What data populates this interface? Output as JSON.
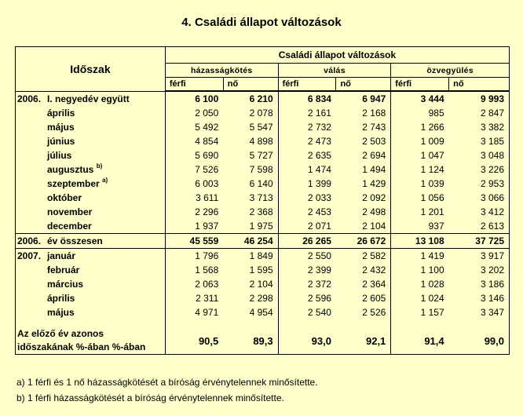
{
  "title": "4. Családi állapot változások",
  "header": {
    "period": "Időszak",
    "group": "Családi állapot változások",
    "subgroups": [
      "házasságkötés",
      "válás",
      "özvegyülés"
    ],
    "sex": [
      "férfi",
      "nő",
      "férfi",
      "nő",
      "férfi",
      "nő"
    ]
  },
  "rows": [
    {
      "year": "2006.",
      "label": "I. negyedév együtt",
      "note": "",
      "bold": true,
      "values": [
        "6 100",
        "6 210",
        "6 834",
        "6 947",
        "3 444",
        "9 993"
      ]
    },
    {
      "year": "",
      "label": "április",
      "note": "",
      "bold": false,
      "values": [
        "2 050",
        "2 078",
        "2 161",
        "2 168",
        "985",
        "2 847"
      ]
    },
    {
      "year": "",
      "label": "május",
      "note": "",
      "bold": false,
      "values": [
        "5 492",
        "5 547",
        "2 732",
        "2 743",
        "1 266",
        "3 382"
      ]
    },
    {
      "year": "",
      "label": "június",
      "note": "",
      "bold": false,
      "values": [
        "4 854",
        "4 898",
        "2 473",
        "2 503",
        "1 009",
        "3 185"
      ]
    },
    {
      "year": "",
      "label": "július",
      "note": "",
      "bold": false,
      "values": [
        "5 690",
        "5 727",
        "2 635",
        "2 694",
        "1 047",
        "3 048"
      ]
    },
    {
      "year": "",
      "label": "augusztus",
      "note": "b)",
      "bold": false,
      "values": [
        "7 526",
        "7 598",
        "1 474",
        "1 494",
        "1 124",
        "3 226"
      ]
    },
    {
      "year": "",
      "label": "szeptember",
      "note": "a)",
      "bold": false,
      "values": [
        "6 003",
        "6 140",
        "1 399",
        "1 429",
        "1 039",
        "2 953"
      ]
    },
    {
      "year": "",
      "label": "október",
      "note": "",
      "bold": false,
      "values": [
        "3 611",
        "3 713",
        "2 033",
        "2 092",
        "1 056",
        "3 066"
      ]
    },
    {
      "year": "",
      "label": "november",
      "note": "",
      "bold": false,
      "values": [
        "2 296",
        "2 368",
        "2 453",
        "2 498",
        "1 201",
        "3 412"
      ]
    },
    {
      "year": "",
      "label": "december",
      "note": "",
      "bold": false,
      "values": [
        "1 937",
        "1 975",
        "2 071",
        "2 104",
        "937",
        "2 613"
      ]
    },
    {
      "year": "2006.",
      "label": "év összesen",
      "note": "",
      "bold": true,
      "values": [
        "45 559",
        "46 254",
        "26 265",
        "26 672",
        "13 108",
        "37 725"
      ]
    },
    {
      "year": "2007.",
      "label": "január",
      "note": "",
      "bold": false,
      "values": [
        "1 796",
        "1 849",
        "2 550",
        "2 582",
        "1 419",
        "3 917"
      ]
    },
    {
      "year": "",
      "label": "február",
      "note": "",
      "bold": false,
      "values": [
        "1 568",
        "1 595",
        "2 399",
        "2 432",
        "1 100",
        "3 202"
      ]
    },
    {
      "year": "",
      "label": "március",
      "note": "",
      "bold": false,
      "values": [
        "2 063",
        "2 104",
        "2 372",
        "2 364",
        "1 028",
        "3 186"
      ]
    },
    {
      "year": "",
      "label": "április",
      "note": "",
      "bold": false,
      "values": [
        "2 311",
        "2 298",
        "2 596",
        "2 605",
        "1 024",
        "3 146"
      ]
    },
    {
      "year": "",
      "label": "május",
      "note": "",
      "bold": false,
      "values": [
        "4 971",
        "4 954",
        "2 540",
        "2 526",
        "1 157",
        "3 347"
      ]
    }
  ],
  "pct_row": {
    "label_line1": "Az előző év azonos",
    "label_line2": "időszakának %-ában %-ában",
    "values": [
      "90,5",
      "89,3",
      "93,0",
      "92,1",
      "91,4",
      "99,0"
    ]
  },
  "footnotes": [
    "a) 1 férfi és 1 nő házasságkötését a bíróság érvénytelennek minősítette.",
    "b) 1 férfi házasságkötését a bíróság érvénytelennek minősítette."
  ]
}
